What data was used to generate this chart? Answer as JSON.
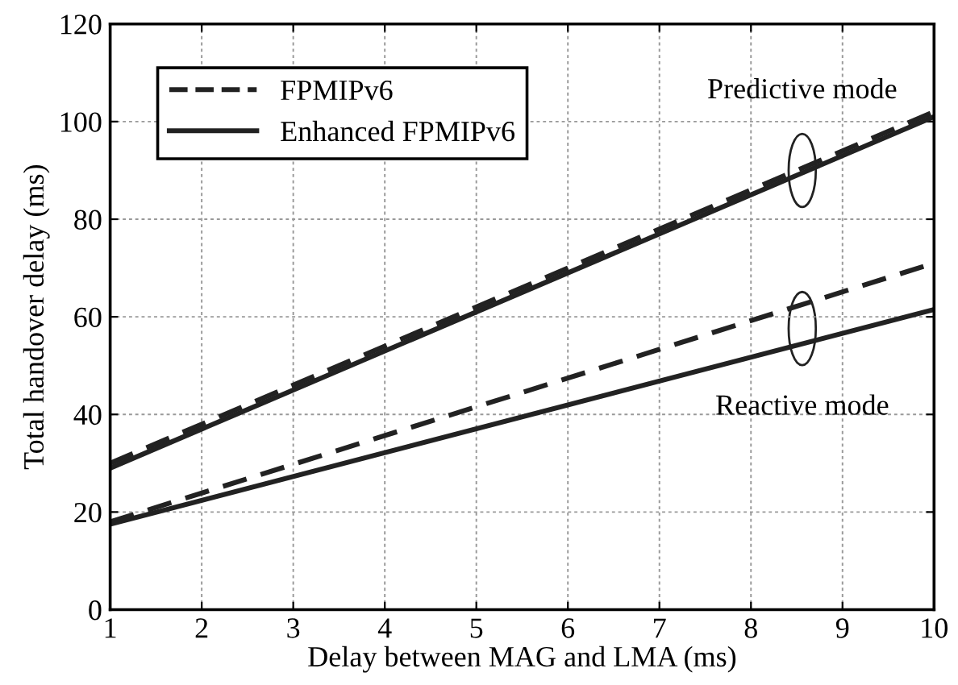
{
  "chart_data": {
    "type": "line",
    "xlabel": "Delay between MAG and LMA (ms)",
    "ylabel": "Total handover delay (ms)",
    "x": [
      1,
      10
    ],
    "series": [
      {
        "name": "FPMIPv6",
        "color": "#222222",
        "values": [
          30,
          102
        ],
        "line_style": "dashed"
      },
      {
        "name": "Enhanced FPMIPv6",
        "color": "#222222",
        "values": [
          29,
          101
        ],
        "line_style": "solid"
      },
      {
        "color": "#222222",
        "values": [
          18,
          71
        ],
        "line_style": "dashed"
      },
      {
        "color": "#222222",
        "values": [
          17.5,
          61.5
        ],
        "line_style": "solid"
      }
    ],
    "annotations": [
      "Predictive mode",
      "Reactive mode"
    ],
    "xlim": [
      1,
      10
    ],
    "xticks": [
      1,
      2,
      3,
      4,
      5,
      6,
      7,
      8,
      9,
      10
    ],
    "ylim": [
      0,
      120
    ],
    "yticks": [
      0,
      20,
      40,
      60,
      80,
      100,
      120
    ],
    "grid": true,
    "legend": "top left",
    "marker": "none"
  }
}
